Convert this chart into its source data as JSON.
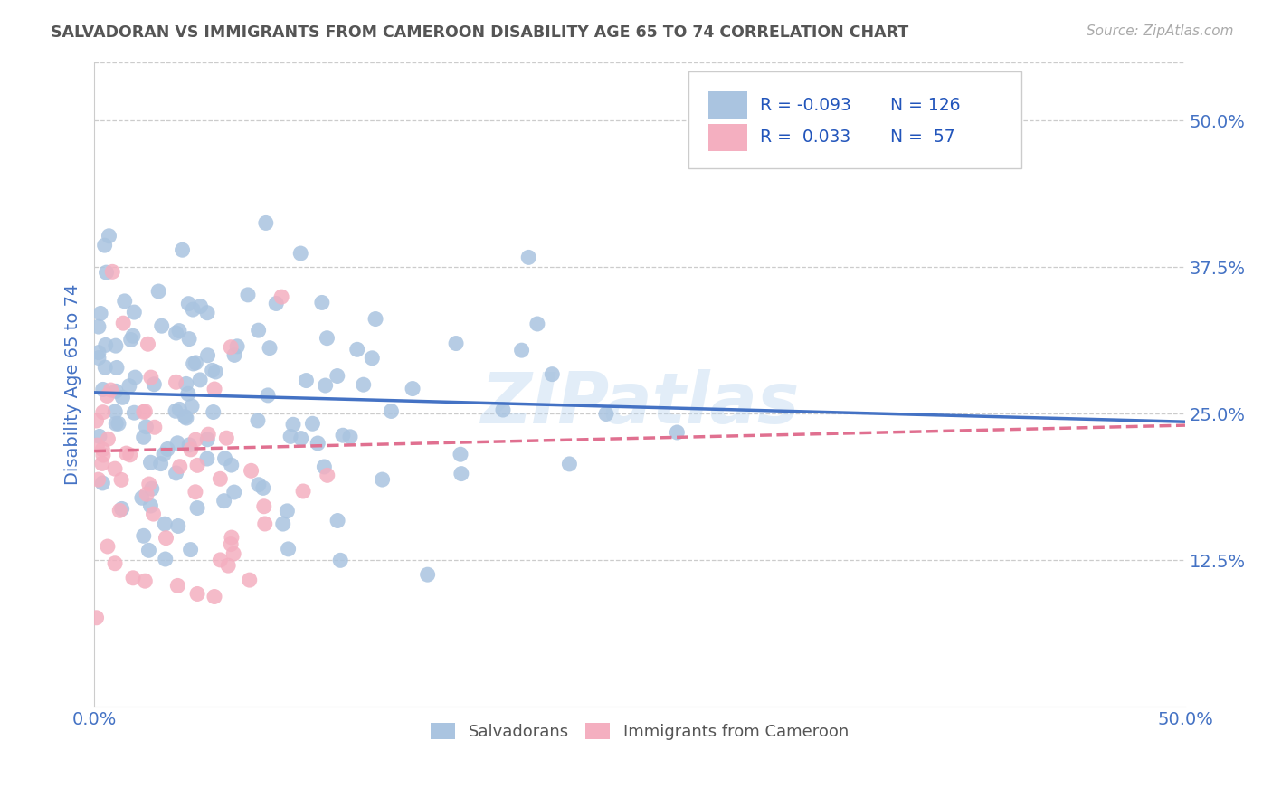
{
  "title": "SALVADORAN VS IMMIGRANTS FROM CAMEROON DISABILITY AGE 65 TO 74 CORRELATION CHART",
  "source": "Source: ZipAtlas.com",
  "ylabel": "Disability Age 65 to 74",
  "xlim": [
    0.0,
    0.5
  ],
  "ylim": [
    0.0,
    0.55
  ],
  "xticks": [
    0.0,
    0.1,
    0.2,
    0.3,
    0.4,
    0.5
  ],
  "yticks": [
    0.125,
    0.25,
    0.375,
    0.5
  ],
  "xticklabels": [
    "0.0%",
    "",
    "",
    "",
    "",
    "50.0%"
  ],
  "yticklabels": [
    "12.5%",
    "25.0%",
    "37.5%",
    "50.0%"
  ],
  "legend_labels": [
    "Salvadorans",
    "Immigrants from Cameroon"
  ],
  "R_blue": -0.093,
  "N_blue": 126,
  "R_pink": 0.033,
  "N_pink": 57,
  "blue_color": "#aac4e0",
  "pink_color": "#f4afc0",
  "blue_line_color": "#4472c4",
  "pink_line_color": "#e07090",
  "title_color": "#555555",
  "axis_label_color": "#4472c4",
  "tick_color": "#4472c4",
  "background_color": "#ffffff",
  "watermark": "ZIPatlas",
  "blue_trend_x": [
    0.0,
    0.5
  ],
  "blue_trend_y": [
    0.268,
    0.243
  ],
  "pink_trend_x": [
    0.0,
    0.5
  ],
  "pink_trend_y": [
    0.218,
    0.24
  ]
}
